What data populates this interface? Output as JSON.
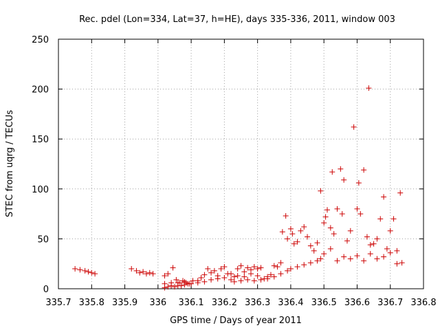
{
  "chart_data": {
    "type": "scatter",
    "title": "Rec. pdel (Lon=334, Lat=37, h=HE), days 335-336, 2011, window 003",
    "xlabel": "GPS time / Days of year 2011",
    "ylabel": "STEC from uqrg / TECUs",
    "xlim": [
      335.7,
      336.8
    ],
    "ylim": [
      0,
      250
    ],
    "xticks": [
      "335.7",
      "335.8",
      "335.9",
      "336",
      "336.1",
      "336.2",
      "336.3",
      "336.4",
      "336.5",
      "336.6",
      "336.7",
      "336.8"
    ],
    "yticks": [
      "0",
      "50",
      "100",
      "150",
      "200",
      "250"
    ],
    "grid": true,
    "marker": "+",
    "marker_color": "#cc0000",
    "series": [
      {
        "name": "STEC",
        "points": [
          [
            335.75,
            20
          ],
          [
            335.765,
            19
          ],
          [
            335.78,
            18
          ],
          [
            335.79,
            17
          ],
          [
            335.8,
            16
          ],
          [
            335.81,
            15
          ],
          [
            335.92,
            20
          ],
          [
            335.935,
            18
          ],
          [
            335.945,
            16
          ],
          [
            335.955,
            17
          ],
          [
            335.965,
            15
          ],
          [
            335.975,
            16
          ],
          [
            335.985,
            15
          ],
          [
            336.02,
            13
          ],
          [
            336.03,
            15
          ],
          [
            336.045,
            21
          ],
          [
            336.055,
            9
          ],
          [
            336.065,
            6
          ],
          [
            336.075,
            8
          ],
          [
            336.085,
            6
          ],
          [
            336.095,
            5
          ],
          [
            336.105,
            8
          ],
          [
            336.02,
            1
          ],
          [
            336.03,
            2
          ],
          [
            336.04,
            3
          ],
          [
            336.05,
            2
          ],
          [
            336.06,
            3
          ],
          [
            336.07,
            3
          ],
          [
            336.08,
            4
          ],
          [
            336.09,
            5
          ],
          [
            336.1,
            5
          ],
          [
            336.02,
            5
          ],
          [
            336.04,
            6
          ],
          [
            336.06,
            6
          ],
          [
            336.08,
            7
          ],
          [
            336.12,
            8
          ],
          [
            336.13,
            11
          ],
          [
            336.14,
            14
          ],
          [
            336.15,
            20
          ],
          [
            336.16,
            16
          ],
          [
            336.17,
            18
          ],
          [
            336.18,
            13
          ],
          [
            336.19,
            20
          ],
          [
            336.2,
            22
          ],
          [
            336.21,
            15
          ],
          [
            336.12,
            6
          ],
          [
            336.14,
            7
          ],
          [
            336.16,
            9
          ],
          [
            336.18,
            10
          ],
          [
            336.2,
            11
          ],
          [
            336.22,
            9
          ],
          [
            336.23,
            12
          ],
          [
            336.24,
            20
          ],
          [
            336.25,
            23
          ],
          [
            336.26,
            17
          ],
          [
            336.27,
            21
          ],
          [
            336.28,
            19
          ],
          [
            336.29,
            22
          ],
          [
            336.3,
            20
          ],
          [
            336.31,
            21
          ],
          [
            336.22,
            15
          ],
          [
            336.24,
            13
          ],
          [
            336.26,
            12
          ],
          [
            336.28,
            15
          ],
          [
            336.3,
            13
          ],
          [
            336.23,
            7
          ],
          [
            336.25,
            8
          ],
          [
            336.27,
            9
          ],
          [
            336.29,
            8
          ],
          [
            336.31,
            9
          ],
          [
            336.32,
            10
          ],
          [
            336.33,
            12
          ],
          [
            336.34,
            14
          ],
          [
            336.35,
            23
          ],
          [
            336.36,
            22
          ],
          [
            336.37,
            26
          ],
          [
            336.375,
            57
          ],
          [
            336.385,
            73
          ],
          [
            336.39,
            50
          ],
          [
            336.33,
            10
          ],
          [
            336.35,
            12
          ],
          [
            336.37,
            15
          ],
          [
            336.39,
            18
          ],
          [
            336.4,
            60
          ],
          [
            336.405,
            55
          ],
          [
            336.41,
            45
          ],
          [
            336.42,
            47
          ],
          [
            336.43,
            58
          ],
          [
            336.44,
            62
          ],
          [
            336.45,
            52
          ],
          [
            336.46,
            43
          ],
          [
            336.47,
            38
          ],
          [
            336.48,
            46
          ],
          [
            336.4,
            20
          ],
          [
            336.42,
            22
          ],
          [
            336.44,
            24
          ],
          [
            336.46,
            26
          ],
          [
            336.48,
            28
          ],
          [
            336.49,
            98
          ],
          [
            336.5,
            66
          ],
          [
            336.505,
            72
          ],
          [
            336.51,
            79
          ],
          [
            336.52,
            61
          ],
          [
            336.525,
            117
          ],
          [
            336.53,
            55
          ],
          [
            336.54,
            80
          ],
          [
            336.55,
            120
          ],
          [
            336.555,
            75
          ],
          [
            336.56,
            109
          ],
          [
            336.49,
            30
          ],
          [
            336.5,
            35
          ],
          [
            336.52,
            40
          ],
          [
            336.54,
            28
          ],
          [
            336.56,
            32
          ],
          [
            336.57,
            48
          ],
          [
            336.58,
            58
          ],
          [
            336.59,
            162
          ],
          [
            336.6,
            80
          ],
          [
            336.605,
            106
          ],
          [
            336.61,
            75
          ],
          [
            336.62,
            119
          ],
          [
            336.63,
            52
          ],
          [
            336.635,
            201
          ],
          [
            336.64,
            44
          ],
          [
            336.58,
            30
          ],
          [
            336.6,
            33
          ],
          [
            336.62,
            28
          ],
          [
            336.64,
            35
          ],
          [
            336.65,
            45
          ],
          [
            336.66,
            50
          ],
          [
            336.67,
            70
          ],
          [
            336.68,
            92
          ],
          [
            336.69,
            40
          ],
          [
            336.7,
            58
          ],
          [
            336.71,
            70
          ],
          [
            336.72,
            38
          ],
          [
            336.73,
            96
          ],
          [
            336.735,
            26
          ],
          [
            336.66,
            30
          ],
          [
            336.68,
            32
          ],
          [
            336.7,
            36
          ],
          [
            336.72,
            25
          ]
        ]
      }
    ]
  }
}
